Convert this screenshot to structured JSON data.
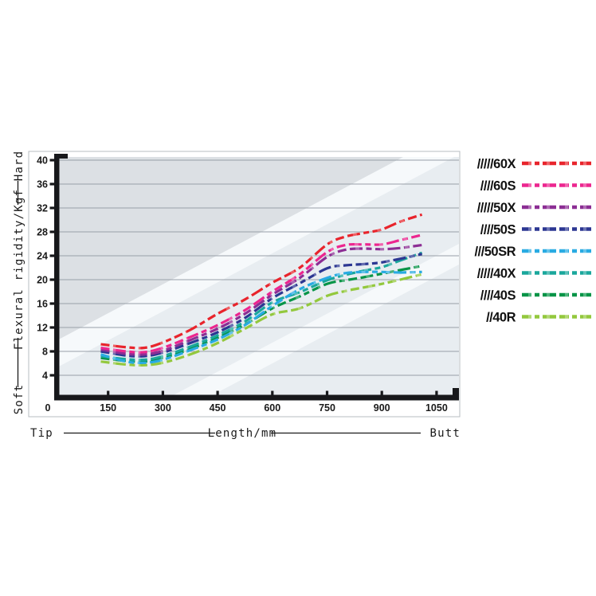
{
  "chart": {
    "y_axis_caption": {
      "top": "Hard",
      "middle": "Flexural rigidity/Kgf",
      "bottom": "Soft"
    },
    "x_axis_caption": {
      "left": "Tip",
      "middle": "Length/mm",
      "right": "Butt"
    }
  },
  "colors": {
    "axis": "#17181b",
    "grid": "#98a0a8",
    "frame": "#b7bcc2",
    "text": "#1a1a1a",
    "plot_background": "#e8edf1",
    "plot_wedge_gray": "#dce0e4",
    "plot_band_white": "#f6f9fb"
  },
  "chart_data": {
    "type": "line",
    "title": "",
    "xlabel": "Length/mm",
    "ylabel": "Flexural rigidity/Kgf",
    "xlim": [
      0,
      1100
    ],
    "ylim": [
      0,
      40
    ],
    "x_ticks": [
      0,
      150,
      300,
      450,
      600,
      750,
      900,
      1050
    ],
    "y_ticks": [
      0,
      4,
      8,
      12,
      16,
      20,
      24,
      28,
      32,
      36,
      40
    ],
    "grid": "horizontal",
    "legend_position": "right",
    "line_style": "dashed",
    "x": [
      130,
      200,
      250,
      300,
      375,
      450,
      525,
      600,
      675,
      750,
      800,
      850,
      900,
      950,
      1010
    ],
    "series": [
      {
        "name": "/////60X",
        "color": "#e8242c",
        "values": [
          9.2,
          8.7,
          8.6,
          9.5,
          11.6,
          14.3,
          16.7,
          19.5,
          22.0,
          25.9,
          27.2,
          27.8,
          28.4,
          29.7,
          30.9
        ]
      },
      {
        "name": "////60S",
        "color": "#ec268f",
        "values": [
          8.6,
          8.0,
          7.9,
          8.6,
          10.4,
          12.4,
          14.9,
          18.0,
          20.9,
          24.6,
          25.8,
          25.9,
          25.9,
          26.6,
          27.5
        ]
      },
      {
        "name": "/////50X",
        "color": "#8c2e94",
        "values": [
          8.3,
          7.6,
          7.5,
          8.1,
          9.9,
          11.8,
          14.3,
          17.5,
          20.3,
          23.8,
          25.0,
          25.2,
          25.1,
          25.3,
          25.8
        ]
      },
      {
        "name": "////50S",
        "color": "#2c3792",
        "values": [
          8.0,
          7.3,
          7.2,
          7.8,
          9.4,
          11.2,
          13.6,
          16.9,
          19.4,
          21.9,
          22.4,
          22.6,
          22.9,
          23.5,
          24.3
        ]
      },
      {
        "name": "///50SR",
        "color": "#29abe2",
        "values": [
          7.5,
          6.3,
          6.1,
          6.6,
          8.2,
          10.0,
          12.4,
          15.6,
          18.4,
          20.3,
          21.1,
          21.3,
          21.3,
          21.2,
          21.3
        ]
      },
      {
        "name": "/////40X",
        "color": "#1aa79c",
        "values": [
          7.2,
          6.7,
          6.6,
          7.2,
          8.8,
          10.7,
          13.0,
          16.2,
          17.9,
          19.9,
          20.8,
          21.5,
          22.1,
          23.2,
          24.5
        ]
      },
      {
        "name": "////40S",
        "color": "#079447",
        "values": [
          6.9,
          6.4,
          6.3,
          6.9,
          8.4,
          10.3,
          12.5,
          15.2,
          17.2,
          19.3,
          19.9,
          20.4,
          21.0,
          21.6,
          22.3
        ]
      },
      {
        "name": "//40R",
        "color": "#93c83d",
        "values": [
          6.3,
          5.8,
          5.7,
          6.1,
          7.5,
          9.4,
          11.8,
          14.2,
          15.2,
          17.3,
          18.1,
          18.7,
          19.3,
          20.0,
          20.9
        ]
      }
    ]
  }
}
